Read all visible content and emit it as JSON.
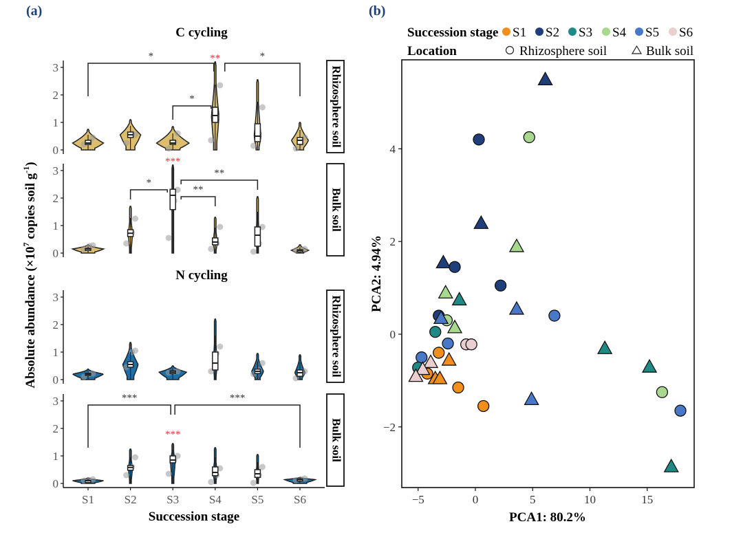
{
  "figure": {
    "panel_a_label": "(a)",
    "panel_b_label": "(b)"
  },
  "chart_data": [
    {
      "type": "violin",
      "panel": "(a)",
      "ylabel": "Absolute abundance (×10^7 copies soil g^-1)",
      "ylabel_main": "Absolute abundance (×10",
      "ylabel_sup1": "7",
      "ylabel_mid": " copies soil g",
      "ylabel_sup2": "-1",
      "ylabel_end": ")",
      "xlabel": "Succession stage",
      "categories": [
        "S1",
        "S2",
        "S3",
        "S4",
        "S5",
        "S6"
      ],
      "ylim": [
        0,
        3.3
      ],
      "yticks": [
        "0",
        "1",
        "2",
        "3"
      ],
      "facets": [
        {
          "group": "C cycling",
          "group_title": "C cycling",
          "location": "Rhizosphere soil",
          "fill": "#DDBE6E",
          "medians": [
            0.25,
            0.55,
            0.25,
            1.25,
            0.5,
            0.35
          ],
          "q1": [
            0.2,
            0.45,
            0.2,
            1.0,
            0.3,
            0.2
          ],
          "q3": [
            0.35,
            0.65,
            0.35,
            1.55,
            0.95,
            0.45
          ],
          "max": [
            0.75,
            1.1,
            0.85,
            3.2,
            2.55,
            1.0
          ],
          "width": [
            0.9,
            0.6,
            0.95,
            0.22,
            0.2,
            0.5
          ],
          "points": [
            [
              0.2,
              0.3,
              0.45
            ],
            [
              0.25,
              0.6,
              0.55
            ],
            [
              0.05,
              0.3,
              0.6
            ],
            [
              0.35,
              1.2,
              2.35
            ],
            [
              0.15,
              0.6,
              1.55
            ],
            [
              0.05,
              0.25,
              0.45
            ]
          ],
          "red_sig": {
            "category": "S4",
            "label": "**"
          },
          "brackets": [
            {
              "from": "S1",
              "to": "S4",
              "label": "*",
              "y": 3.15,
              "left_end": 1.95,
              "right_end": 2.85
            },
            {
              "from": "S4",
              "to": "S6",
              "label": "*",
              "y": 3.15,
              "left_end": 2.85,
              "right_end": 1.95
            },
            {
              "from": "S3",
              "to": "S4",
              "label": "*",
              "y": 1.6,
              "left_end": 1.1,
              "right_end": 1.5
            }
          ]
        },
        {
          "group": "C cycling",
          "location": "Bulk soil",
          "fill": "#DDBE6E",
          "medians": [
            0.15,
            0.72,
            2.1,
            0.4,
            0.65,
            0.1
          ],
          "q1": [
            0.13,
            0.6,
            1.58,
            0.3,
            0.25,
            0.08
          ],
          "q3": [
            0.17,
            0.85,
            2.32,
            0.55,
            0.95,
            0.12
          ],
          "max": [
            0.3,
            1.7,
            3.2,
            1.3,
            2.05,
            0.3
          ],
          "width": [
            0.9,
            0.12,
            0.06,
            0.12,
            0.1,
            0.5
          ],
          "points": [
            [
              0.15,
              0.25,
              0.28
            ],
            [
              0.35,
              0.75,
              1.25
            ],
            [
              0.55,
              1.9,
              2.3
            ],
            [
              0.15,
              0.35,
              0.95
            ],
            [
              0.05,
              0.35,
              0.95
            ],
            [
              0.1,
              0.12,
              0.15
            ]
          ],
          "red_sig": {
            "category": "S3",
            "label": "***"
          },
          "brackets": [
            {
              "from": "S2",
              "to": "S3",
              "label": "*",
              "y": 2.3,
              "left_end": 1.95,
              "right_end": 2.2
            },
            {
              "from": "S3",
              "to": "S4",
              "label": "**",
              "y": 2.05,
              "left_end": 1.95,
              "right_end": 1.7
            },
            {
              "from": "S3",
              "to": "S5",
              "label": "**",
              "y": 2.65,
              "left_end": 2.5,
              "right_end": 2.3
            }
          ]
        },
        {
          "group": "N cycling",
          "group_title": "N cycling",
          "location": "Rhizosphere soil",
          "fill": "#1D6FA8",
          "medians": [
            0.2,
            0.55,
            0.27,
            0.6,
            0.3,
            0.25
          ],
          "q1": [
            0.17,
            0.45,
            0.22,
            0.35,
            0.22,
            0.12
          ],
          "q3": [
            0.23,
            0.65,
            0.32,
            1.0,
            0.38,
            0.35
          ],
          "max": [
            0.38,
            1.35,
            0.5,
            2.2,
            0.95,
            0.9
          ],
          "width": [
            0.9,
            0.45,
            0.8,
            0.12,
            0.35,
            0.3
          ],
          "points": [
            [
              0.1,
              0.2,
              0.22
            ],
            [
              0.45,
              1.0,
              1.05
            ],
            [
              0.25,
              0.28,
              0.3
            ],
            [
              0.3,
              0.95,
              1.2
            ],
            [
              0.2,
              0.35,
              0.6
            ],
            [
              0.05,
              0.2,
              0.3
            ]
          ],
          "red_sig": null,
          "brackets": []
        },
        {
          "group": "N cycling",
          "location": "Bulk soil",
          "fill": "#1D6FA8",
          "medians": [
            0.1,
            0.58,
            0.85,
            0.4,
            0.35,
            0.14
          ],
          "q1": [
            0.09,
            0.48,
            0.75,
            0.28,
            0.22,
            0.12
          ],
          "q3": [
            0.11,
            0.65,
            1.0,
            0.6,
            0.5,
            0.16
          ],
          "max": [
            0.2,
            1.25,
            1.45,
            1.3,
            1.05,
            0.22
          ],
          "width": [
            0.9,
            0.12,
            0.14,
            0.12,
            0.1,
            0.9
          ],
          "points": [
            [
              0.1,
              0.12,
              0.15
            ],
            [
              0.3,
              0.6,
              0.95
            ],
            [
              0.35,
              0.85,
              1.0
            ],
            [
              0.05,
              0.3,
              0.55
            ],
            [
              0.02,
              0.3,
              0.6
            ],
            [
              0.12,
              0.15,
              0.18
            ]
          ],
          "red_sig": {
            "category": "S3",
            "label": "***"
          },
          "brackets": [
            {
              "from": "S1",
              "to": "S3",
              "label": "***",
              "y": 2.85,
              "left_end": 1.3,
              "right_end": 2.5
            },
            {
              "from": "S3",
              "to": "S6",
              "label": "***",
              "y": 2.85,
              "left_end": 2.5,
              "right_end": 1.3
            }
          ]
        }
      ]
    },
    {
      "type": "scatter",
      "panel": "(b)",
      "xlabel": "PCA1: 80.2%",
      "ylabel": "PCA2: 4.94%",
      "xlim": [
        -6.4,
        19.1
      ],
      "ylim": [
        -3.3,
        5.9
      ],
      "xticks": [
        -5,
        0,
        5,
        10,
        15
      ],
      "xtick_labels": [
        "−5",
        "0",
        "5",
        "10",
        "15"
      ],
      "yticks": [
        -2,
        0,
        2,
        4
      ],
      "ytick_labels": [
        "−2",
        "0",
        "2",
        "4"
      ],
      "grid": false,
      "legend": {
        "placement": "top",
        "color_title": "Succession stage",
        "shape_title": "Location",
        "stages": [
          {
            "name": "S1",
            "color": "#F28E1C"
          },
          {
            "name": "S2",
            "color": "#1F3F7A"
          },
          {
            "name": "S3",
            "color": "#1F8A85"
          },
          {
            "name": "S4",
            "color": "#A8D88E"
          },
          {
            "name": "S5",
            "color": "#4A78C8"
          },
          {
            "name": "S6",
            "color": "#EBCFD0"
          }
        ],
        "shapes": [
          {
            "name": "Rhizosphere soil",
            "shape": "circle",
            "glyph": "○"
          },
          {
            "name": "Bulk soil",
            "shape": "triangle",
            "glyph": "△"
          }
        ]
      },
      "points": [
        {
          "stage": "S2",
          "loc": "Bulk soil",
          "x": 6.1,
          "y": 5.5
        },
        {
          "stage": "S2",
          "loc": "Rhizosphere soil",
          "x": 0.3,
          "y": 4.2
        },
        {
          "stage": "S4",
          "loc": "Rhizosphere soil",
          "x": 4.7,
          "y": 4.25
        },
        {
          "stage": "S2",
          "loc": "Bulk soil",
          "x": 0.5,
          "y": 2.4
        },
        {
          "stage": "S4",
          "loc": "Bulk soil",
          "x": 3.6,
          "y": 1.9
        },
        {
          "stage": "S2",
          "loc": "Bulk soil",
          "x": -2.8,
          "y": 1.55
        },
        {
          "stage": "S2",
          "loc": "Rhizosphere soil",
          "x": -1.8,
          "y": 1.45
        },
        {
          "stage": "S2",
          "loc": "Rhizosphere soil",
          "x": 2.2,
          "y": 1.05
        },
        {
          "stage": "S4",
          "loc": "Bulk soil",
          "x": -2.6,
          "y": 0.9
        },
        {
          "stage": "S3",
          "loc": "Bulk soil",
          "x": -1.4,
          "y": 0.75
        },
        {
          "stage": "S5",
          "loc": "Bulk soil",
          "x": 3.6,
          "y": 0.55
        },
        {
          "stage": "S5",
          "loc": "Rhizosphere soil",
          "x": 6.9,
          "y": 0.4
        },
        {
          "stage": "S2",
          "loc": "Rhizosphere soil",
          "x": -3.2,
          "y": 0.4
        },
        {
          "stage": "S4",
          "loc": "Rhizosphere soil",
          "x": -2.5,
          "y": 0.3
        },
        {
          "stage": "S5",
          "loc": "Bulk soil",
          "x": -3.0,
          "y": 0.35
        },
        {
          "stage": "S4",
          "loc": "Bulk soil",
          "x": -1.8,
          "y": 0.15
        },
        {
          "stage": "S3",
          "loc": "Rhizosphere soil",
          "x": -3.5,
          "y": 0.05
        },
        {
          "stage": "S5",
          "loc": "Rhizosphere soil",
          "x": -2.4,
          "y": -0.2
        },
        {
          "stage": "S6",
          "loc": "Rhizosphere soil",
          "x": -0.8,
          "y": -0.22
        },
        {
          "stage": "S6",
          "loc": "Rhizosphere soil",
          "x": -0.35,
          "y": -0.22
        },
        {
          "stage": "S1",
          "loc": "Rhizosphere soil",
          "x": -3.2,
          "y": -0.4
        },
        {
          "stage": "S1",
          "loc": "Bulk soil",
          "x": -2.3,
          "y": -0.55
        },
        {
          "stage": "S5",
          "loc": "Rhizosphere soil",
          "x": -4.7,
          "y": -0.5
        },
        {
          "stage": "S3",
          "loc": "Rhizosphere soil",
          "x": -5.0,
          "y": -0.72
        },
        {
          "stage": "S6",
          "loc": "Bulk soil",
          "x": -3.9,
          "y": -0.6
        },
        {
          "stage": "S1",
          "loc": "Rhizosphere soil",
          "x": -4.2,
          "y": -0.85
        },
        {
          "stage": "S6",
          "loc": "Bulk soil",
          "x": -4.6,
          "y": -0.75
        },
        {
          "stage": "S6",
          "loc": "Bulk soil",
          "x": -5.2,
          "y": -0.9
        },
        {
          "stage": "S1",
          "loc": "Bulk soil",
          "x": -3.5,
          "y": -0.95
        },
        {
          "stage": "S1",
          "loc": "Bulk soil",
          "x": -3.1,
          "y": -0.95
        },
        {
          "stage": "S1",
          "loc": "Rhizosphere soil",
          "x": -1.5,
          "y": -1.15
        },
        {
          "stage": "S1",
          "loc": "Rhizosphere soil",
          "x": 0.7,
          "y": -1.55
        },
        {
          "stage": "S3",
          "loc": "Bulk soil",
          "x": 11.3,
          "y": -0.3
        },
        {
          "stage": "S3",
          "loc": "Bulk soil",
          "x": 15.2,
          "y": -0.7
        },
        {
          "stage": "S4",
          "loc": "Rhizosphere soil",
          "x": 16.3,
          "y": -1.25
        },
        {
          "stage": "S5",
          "loc": "Rhizosphere soil",
          "x": 17.9,
          "y": -1.65
        },
        {
          "stage": "S5",
          "loc": "Bulk soil",
          "x": 4.9,
          "y": -1.4
        },
        {
          "stage": "S3",
          "loc": "Bulk soil",
          "x": 17.1,
          "y": -2.85
        }
      ]
    }
  ]
}
